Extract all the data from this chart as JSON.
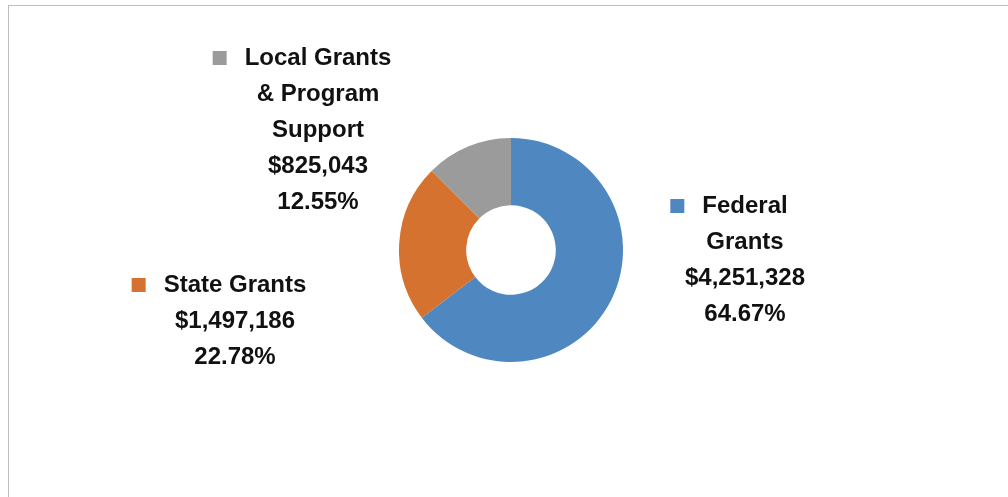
{
  "chart_data": {
    "type": "donut",
    "categories": [
      "Federal Grants",
      "State Grants",
      "Local Grants & Program Support"
    ],
    "values": [
      4251328,
      1497186,
      825043
    ],
    "colors": [
      "#4f88c0",
      "#d5722f",
      "#9b9b9b"
    ],
    "value_labels": [
      "$4,251,328\n64.67%",
      "$1,497,186\n22.78%",
      "$825,043\n12.55%"
    ],
    "legend": "top"
  }
}
